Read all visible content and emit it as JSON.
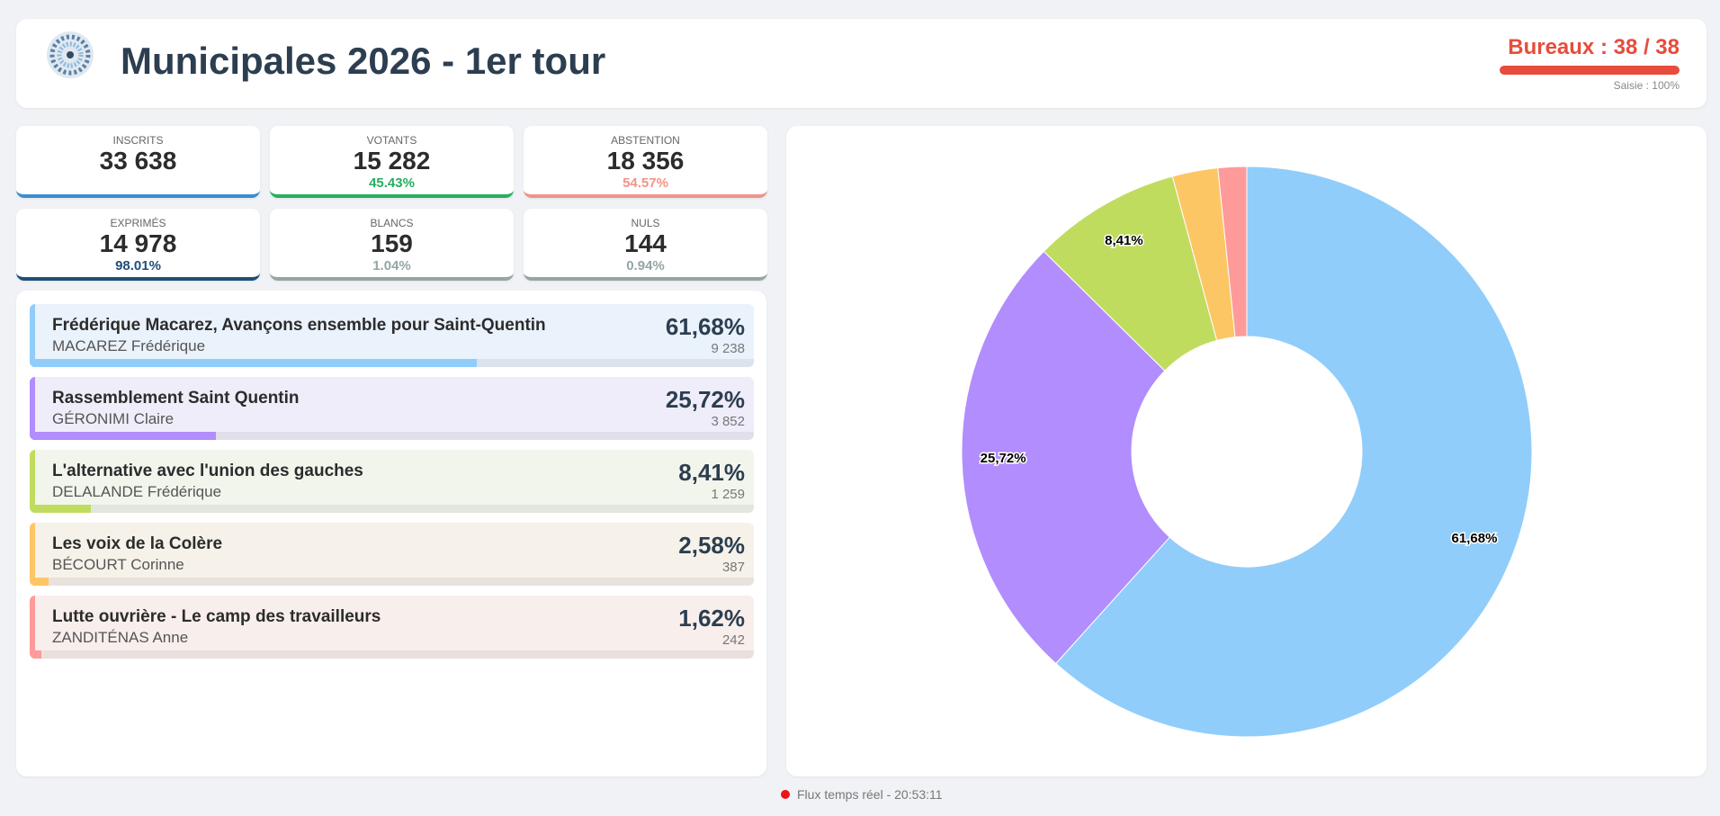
{
  "header": {
    "title": "Municipales 2026 - 1er tour",
    "bureaux": "Bureaux : 38 / 38",
    "saisie": "Saisie : 100%"
  },
  "stats": [
    {
      "label": "INSCRITS",
      "value": "33 638",
      "color": "#3b8ed0"
    },
    {
      "label": "VOTANTS",
      "value": "15 282",
      "pct": "45.43%",
      "color": "#27ae60"
    },
    {
      "label": "ABSTENTION",
      "value": "18 356",
      "pct": "54.57%",
      "color": "#f1948a"
    },
    {
      "label": "EXPRIMÉS",
      "value": "14 978",
      "pct": "98.01%",
      "color": "#1f4e79"
    },
    {
      "label": "BLANCS",
      "value": "159",
      "pct": "1.04%",
      "color": "#95a5a6"
    },
    {
      "label": "NULS",
      "value": "144",
      "pct": "0.94%",
      "color": "#95a5a6"
    }
  ],
  "candidates": [
    {
      "list": "Frédérique Macarez, Avançons ensemble pour Saint-Quentin",
      "name": "MACAREZ Frédérique",
      "pct": "61,68%",
      "votes": "9 238",
      "bg": "#eaf2fb"
    },
    {
      "list": "Rassemblement Saint Quentin",
      "name": "GÉRONIMI Claire",
      "pct": "25,72%",
      "votes": "3 852",
      "bg": "#efedfa"
    },
    {
      "list": "L'alternative avec l'union des gauches",
      "name": "DELALANDE Frédérique",
      "pct": "8,41%",
      "votes": "1 259",
      "bg": "#f2f5ec"
    },
    {
      "list": "Les voix de la Colère",
      "name": "BÉCOURT Corinne",
      "pct": "2,58%",
      "votes": "387",
      "bg": "#f6f2ea"
    },
    {
      "list": "Lutte ouvrière - Le camp des travailleurs",
      "name": "ZANDITÉNAS Anne",
      "pct": "1,62%",
      "votes": "242",
      "bg": "#f8eeec"
    }
  ],
  "chart_data": {
    "type": "pie",
    "values": [
      61.68,
      25.72,
      8.41,
      2.58,
      1.62
    ],
    "value_labels": [
      "61,68%",
      "25,72%",
      "8,41%",
      null,
      null
    ],
    "colors": [
      "#90cdfb",
      "#b28dfd",
      "#c0dc5f",
      "#fdc665",
      "#fe9a9a"
    ]
  },
  "footer": "Flux temps réel - 20:53:11"
}
